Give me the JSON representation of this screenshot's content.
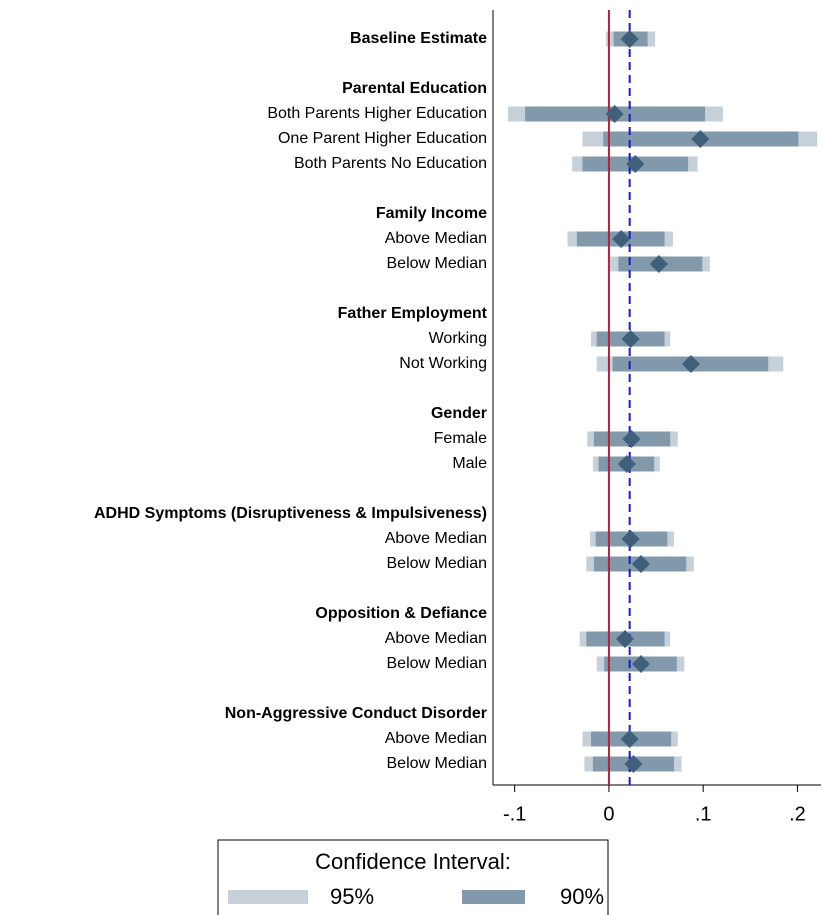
{
  "chart_data": {
    "type": "coefplot",
    "categories": [
      "Baseline Estimate",
      null,
      "Parental Education",
      "Both Parents Higher Education",
      "One Parent Higher Education",
      "Both Parents No Education",
      null,
      "Family Income",
      "Above Median",
      "Below Median",
      null,
      "Father Employment",
      "Working",
      "Not Working",
      null,
      "Gender",
      "Female",
      "Male",
      null,
      "ADHD Symptoms (Disruptiveness & Impulsiveness)",
      "Above Median",
      "Below Median",
      null,
      "Opposition & Defiance",
      "Above Median",
      "Below Median",
      null,
      "Non-Aggressive Conduct Disorder",
      "Above Median",
      "Below Median"
    ],
    "bold": [
      true,
      false,
      true,
      false,
      false,
      false,
      false,
      true,
      false,
      false,
      false,
      true,
      false,
      false,
      false,
      true,
      false,
      false,
      false,
      true,
      false,
      false,
      false,
      true,
      false,
      false,
      false,
      true,
      false,
      false
    ],
    "values": [
      0.022,
      null,
      null,
      0.006,
      0.097,
      0.028,
      null,
      null,
      0.013,
      0.053,
      null,
      null,
      0.023,
      0.087,
      null,
      null,
      0.024,
      0.019,
      null,
      null,
      0.023,
      0.034,
      null,
      null,
      0.017,
      0.034,
      null,
      null,
      0.022,
      0.026
    ],
    "marker_color": "#3f5f7a",
    "series": [
      {
        "name": "95%",
        "color": "#c5d0d9",
        "low": [
          -0.003,
          null,
          null,
          -0.107,
          -0.028,
          -0.039,
          null,
          null,
          -0.044,
          0.001,
          null,
          null,
          -0.019,
          -0.013,
          null,
          null,
          -0.023,
          -0.017,
          null,
          null,
          -0.02,
          -0.024,
          null,
          null,
          -0.031,
          -0.013,
          null,
          null,
          -0.028,
          -0.026
        ],
        "high": [
          0.049,
          null,
          null,
          0.121,
          0.221,
          0.094,
          null,
          null,
          0.068,
          0.107,
          null,
          null,
          0.065,
          0.185,
          null,
          null,
          0.073,
          0.054,
          null,
          null,
          0.069,
          0.09,
          null,
          null,
          0.065,
          0.08,
          null,
          null,
          0.073,
          0.077
        ]
      },
      {
        "name": "90%",
        "color": "#8199aa",
        "low": [
          0.005,
          null,
          null,
          -0.089,
          -0.006,
          -0.028,
          null,
          null,
          -0.034,
          0.01,
          null,
          null,
          -0.013,
          0.004,
          null,
          null,
          -0.016,
          -0.011,
          null,
          null,
          -0.014,
          -0.016,
          null,
          null,
          -0.024,
          -0.005,
          null,
          null,
          -0.019,
          -0.017
        ],
        "high": [
          0.041,
          null,
          null,
          0.102,
          0.201,
          0.084,
          null,
          null,
          0.059,
          0.099,
          null,
          null,
          0.059,
          0.169,
          null,
          null,
          0.065,
          0.048,
          null,
          null,
          0.062,
          0.082,
          null,
          null,
          0.059,
          0.072,
          null,
          null,
          0.066,
          0.069
        ]
      }
    ],
    "reference_lines": [
      {
        "value": 0,
        "color": "#b0223a",
        "dashed": false
      },
      {
        "value": 0.022,
        "color": "#1a1acc",
        "dashed": true
      }
    ],
    "xlim": [
      -0.123,
      0.225
    ],
    "xticks": [
      {
        "value": -0.1,
        "label": "-.1"
      },
      0,
      {
        "value": 0.1,
        "label": ".1"
      },
      {
        "value": 0.2,
        "label": ".2"
      }
    ],
    "legend_title": "Confidence Interval:"
  }
}
